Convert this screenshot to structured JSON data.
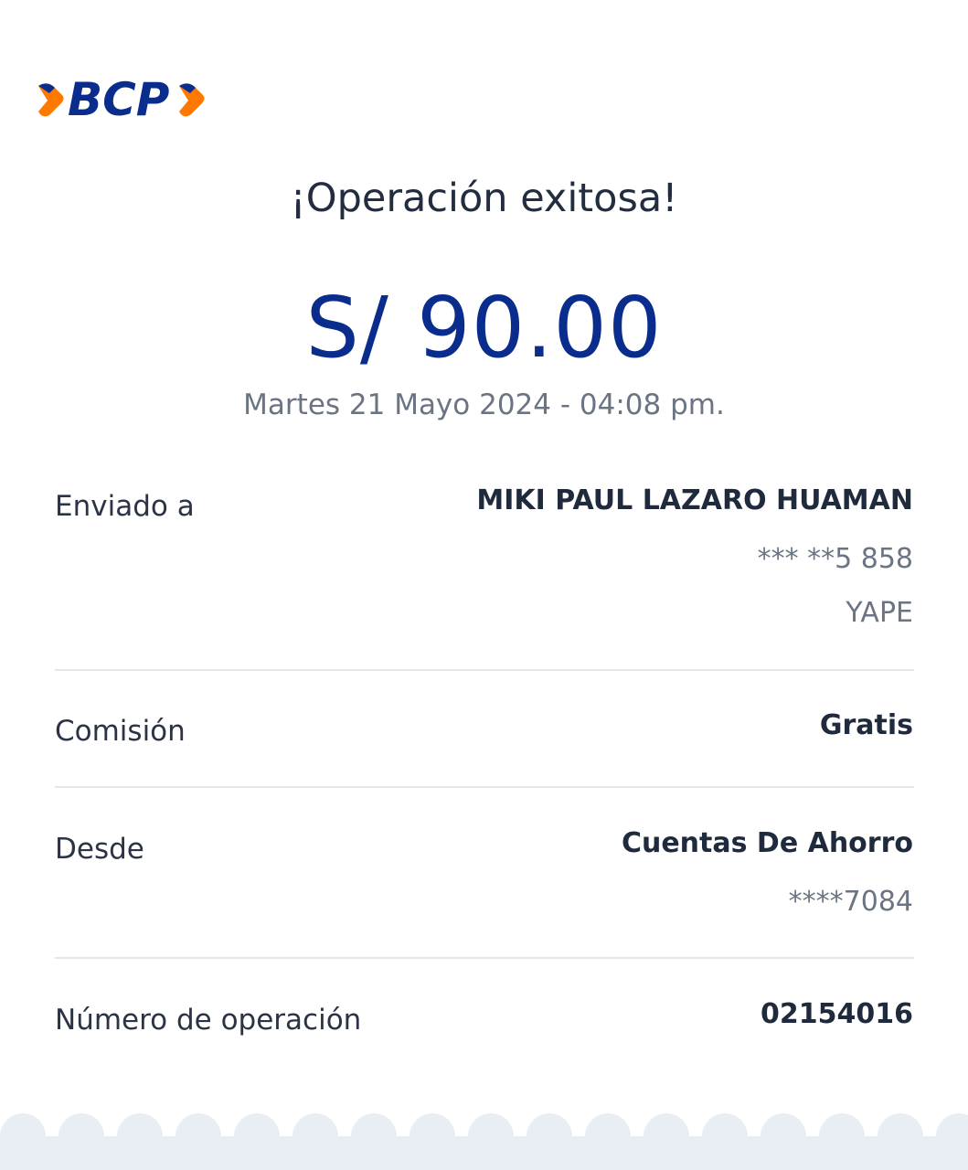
{
  "brand": {
    "logo_text": "BCP",
    "primary": "#0a2c8c",
    "accent": "#ff7800"
  },
  "title": "¡Operación exitosa!",
  "amount": "S/ 90.00",
  "datetime": "Martes 21 Mayo 2024 - 04:08 pm.",
  "details": [
    {
      "label": "Enviado a",
      "values": [
        "MIKI PAUL LAZARO HUAMAN",
        "*** **5 858",
        "YAPE"
      ]
    },
    {
      "label": "Comisión",
      "values": [
        "Gratis"
      ]
    },
    {
      "label": "Desde",
      "values": [
        "Cuentas De Ahorro",
        "****7084"
      ]
    },
    {
      "label": "Número de operación",
      "values": [
        "02154016"
      ]
    }
  ]
}
